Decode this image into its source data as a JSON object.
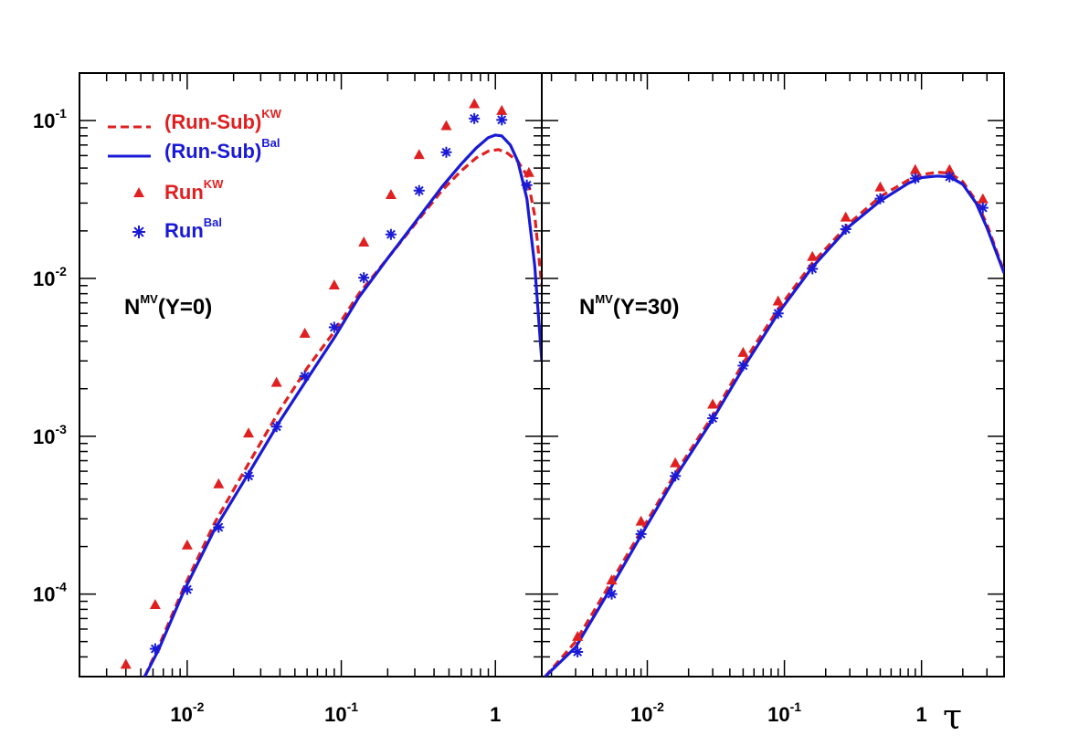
{
  "chart_data": [
    {
      "type": "line",
      "panel_label": {
        "base": "N",
        "sup": "MV",
        "rest": "(Y=0)"
      },
      "log_x": true,
      "log_y": true,
      "xlim": [
        0.002,
        2.0
      ],
      "ylim": [
        3e-05,
        0.2
      ],
      "x_ticks": [
        {
          "base": "10",
          "exp": "-2"
        },
        {
          "base": "10",
          "exp": "-1"
        },
        {
          "base": "1",
          "exp": ""
        }
      ],
      "y_ticks": [
        {
          "base": "10",
          "exp": "-1"
        },
        {
          "base": "10",
          "exp": "-2"
        },
        {
          "base": "10",
          "exp": "-3"
        },
        {
          "base": "10",
          "exp": "-4"
        }
      ],
      "legend": [
        {
          "base": "(Run-Sub)",
          "sup": "KW",
          "style": "dashed-line",
          "color": "#e02020"
        },
        {
          "base": "(Run-Sub)",
          "sup": "Bal",
          "style": "solid-line",
          "color": "#1a1ad6"
        },
        {
          "base": "Run",
          "sup": "KW",
          "style": "triangle",
          "color": "#e02020"
        },
        {
          "base": "Run",
          "sup": "Bal",
          "style": "asterisk",
          "color": "#1a1ad6"
        }
      ],
      "series": [
        {
          "style": "dashed-line",
          "color": "#e02020",
          "x": [
            0.0053,
            0.0065,
            0.0095,
            0.015,
            0.025,
            0.04,
            0.06,
            0.09,
            0.13,
            0.2,
            0.3,
            0.45,
            0.6,
            0.75,
            0.9,
            1.05,
            1.2,
            1.4,
            1.6,
            1.8,
            2.0
          ],
          "y": [
            3e-05,
            4.6e-05,
            0.00011,
            0.00028,
            0.00067,
            0.00147,
            0.0027,
            0.0046,
            0.008,
            0.0134,
            0.022,
            0.036,
            0.048,
            0.058,
            0.064,
            0.0655,
            0.062,
            0.055,
            0.045,
            0.025,
            0.009
          ]
        },
        {
          "style": "solid-line",
          "color": "#1a1ad6",
          "x": [
            0.0053,
            0.0065,
            0.0095,
            0.015,
            0.025,
            0.04,
            0.06,
            0.09,
            0.13,
            0.2,
            0.3,
            0.45,
            0.6,
            0.75,
            0.9,
            1.0,
            1.1,
            1.25,
            1.4,
            1.6,
            1.8,
            2.0
          ],
          "y": [
            3e-05,
            4.4e-05,
            0.000104,
            0.000255,
            0.00058,
            0.00125,
            0.0023,
            0.0042,
            0.0076,
            0.0134,
            0.0225,
            0.038,
            0.053,
            0.067,
            0.078,
            0.081,
            0.08,
            0.07,
            0.055,
            0.032,
            0.012,
            0.003
          ]
        },
        {
          "style": "triangle",
          "color": "#e02020",
          "x": [
            0.004,
            0.0062,
            0.01,
            0.016,
            0.025,
            0.038,
            0.058,
            0.09,
            0.14,
            0.21,
            0.32,
            0.48,
            0.73,
            1.1,
            1.65
          ],
          "y": [
            3.6e-05,
            8.6e-05,
            0.000205,
            0.0005,
            0.00105,
            0.0022,
            0.0045,
            0.0091,
            0.017,
            0.034,
            0.061,
            0.093,
            0.128,
            0.116,
            0.047
          ]
        },
        {
          "style": "asterisk",
          "color": "#1a1ad6",
          "x": [
            0.0062,
            0.01,
            0.016,
            0.025,
            0.038,
            0.058,
            0.09,
            0.14,
            0.21,
            0.32,
            0.48,
            0.73,
            1.1,
            1.6
          ],
          "y": [
            4.5e-05,
            0.000107,
            0.000265,
            0.00056,
            0.00115,
            0.0024,
            0.0049,
            0.0101,
            0.019,
            0.036,
            0.063,
            0.103,
            0.101,
            0.039
          ]
        }
      ]
    },
    {
      "type": "line",
      "panel_label": {
        "base": "N",
        "sup": "MV",
        "rest": "(Y=30)"
      },
      "log_x": true,
      "log_y": true,
      "xlim": [
        0.0017,
        4.0
      ],
      "ylim": [
        3e-05,
        0.2
      ],
      "x_ticks": [
        {
          "base": "10",
          "exp": "-2"
        },
        {
          "base": "10",
          "exp": "-1"
        },
        {
          "base": "1",
          "exp": ""
        }
      ],
      "xlabel": "τ",
      "series": [
        {
          "style": "dashed-line",
          "color": "#e02020",
          "x": [
            0.0018,
            0.003,
            0.005,
            0.009,
            0.016,
            0.03,
            0.05,
            0.09,
            0.16,
            0.3,
            0.5,
            0.8,
            1.0,
            1.3,
            1.6,
            2.0,
            2.5,
            3.0,
            4.0
          ],
          "y": [
            3e-05,
            5e-05,
            0.000105,
            0.00025,
            0.00058,
            0.00135,
            0.0029,
            0.0064,
            0.0125,
            0.0225,
            0.033,
            0.042,
            0.0455,
            0.047,
            0.0465,
            0.041,
            0.031,
            0.022,
            0.011
          ]
        },
        {
          "style": "solid-line",
          "color": "#1a1ad6",
          "x": [
            0.0018,
            0.003,
            0.005,
            0.009,
            0.016,
            0.03,
            0.05,
            0.09,
            0.16,
            0.3,
            0.5,
            0.8,
            1.0,
            1.3,
            1.6,
            2.0,
            2.5,
            3.0,
            4.0
          ],
          "y": [
            3e-05,
            4.6e-05,
            9.7e-05,
            0.000235,
            0.00055,
            0.00128,
            0.0027,
            0.006,
            0.0118,
            0.0215,
            0.031,
            0.04,
            0.0435,
            0.0445,
            0.044,
            0.0395,
            0.03,
            0.021,
            0.0108
          ]
        },
        {
          "style": "triangle",
          "color": "#e02020",
          "x": [
            0.0031,
            0.0055,
            0.009,
            0.016,
            0.03,
            0.05,
            0.09,
            0.16,
            0.28,
            0.5,
            0.9,
            1.6,
            2.8
          ],
          "y": [
            5.4e-05,
            0.000123,
            0.00029,
            0.00068,
            0.0016,
            0.0034,
            0.0072,
            0.0138,
            0.0245,
            0.038,
            0.049,
            0.049,
            0.032
          ]
        },
        {
          "style": "asterisk",
          "color": "#1a1ad6",
          "x": [
            0.0031,
            0.0055,
            0.009,
            0.016,
            0.03,
            0.05,
            0.09,
            0.16,
            0.28,
            0.5,
            0.9,
            1.6,
            2.8
          ],
          "y": [
            4.3e-05,
            0.0001,
            0.00024,
            0.00056,
            0.0013,
            0.0028,
            0.006,
            0.0115,
            0.0205,
            0.032,
            0.043,
            0.044,
            0.028
          ]
        }
      ]
    }
  ]
}
